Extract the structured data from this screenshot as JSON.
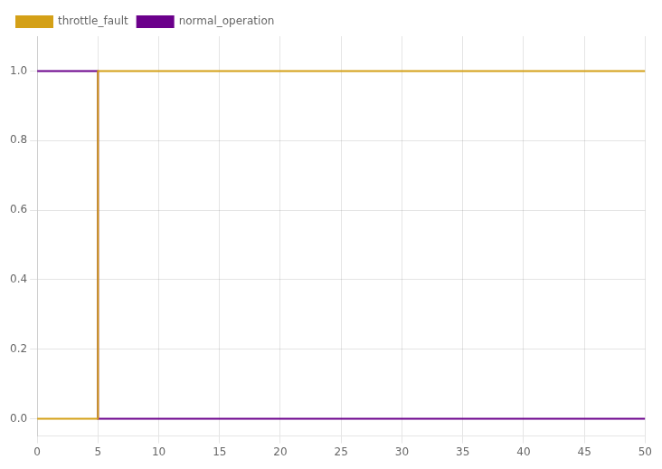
{
  "chart_data": {
    "type": "line",
    "x": [
      0,
      5,
      5,
      50
    ],
    "series": [
      {
        "name": "throttle_fault",
        "color": "#D4A017",
        "values": [
          0,
          0,
          1,
          1
        ]
      },
      {
        "name": "normal_operation",
        "color": "#6B008B",
        "values": [
          1,
          1,
          0,
          0
        ]
      }
    ],
    "xlim": [
      0,
      50
    ],
    "xticks": [
      0,
      5,
      10,
      15,
      20,
      25,
      30,
      35,
      40,
      45,
      50
    ],
    "ylim": [
      -0.05,
      1.1
    ],
    "yticks": [
      {
        "value": 0.0,
        "label": "0.0"
      },
      0.2,
      0.4,
      0.6,
      0.8,
      {
        "value": 1.0,
        "label": "1.0"
      }
    ],
    "grid": true,
    "legend": "upper left"
  }
}
